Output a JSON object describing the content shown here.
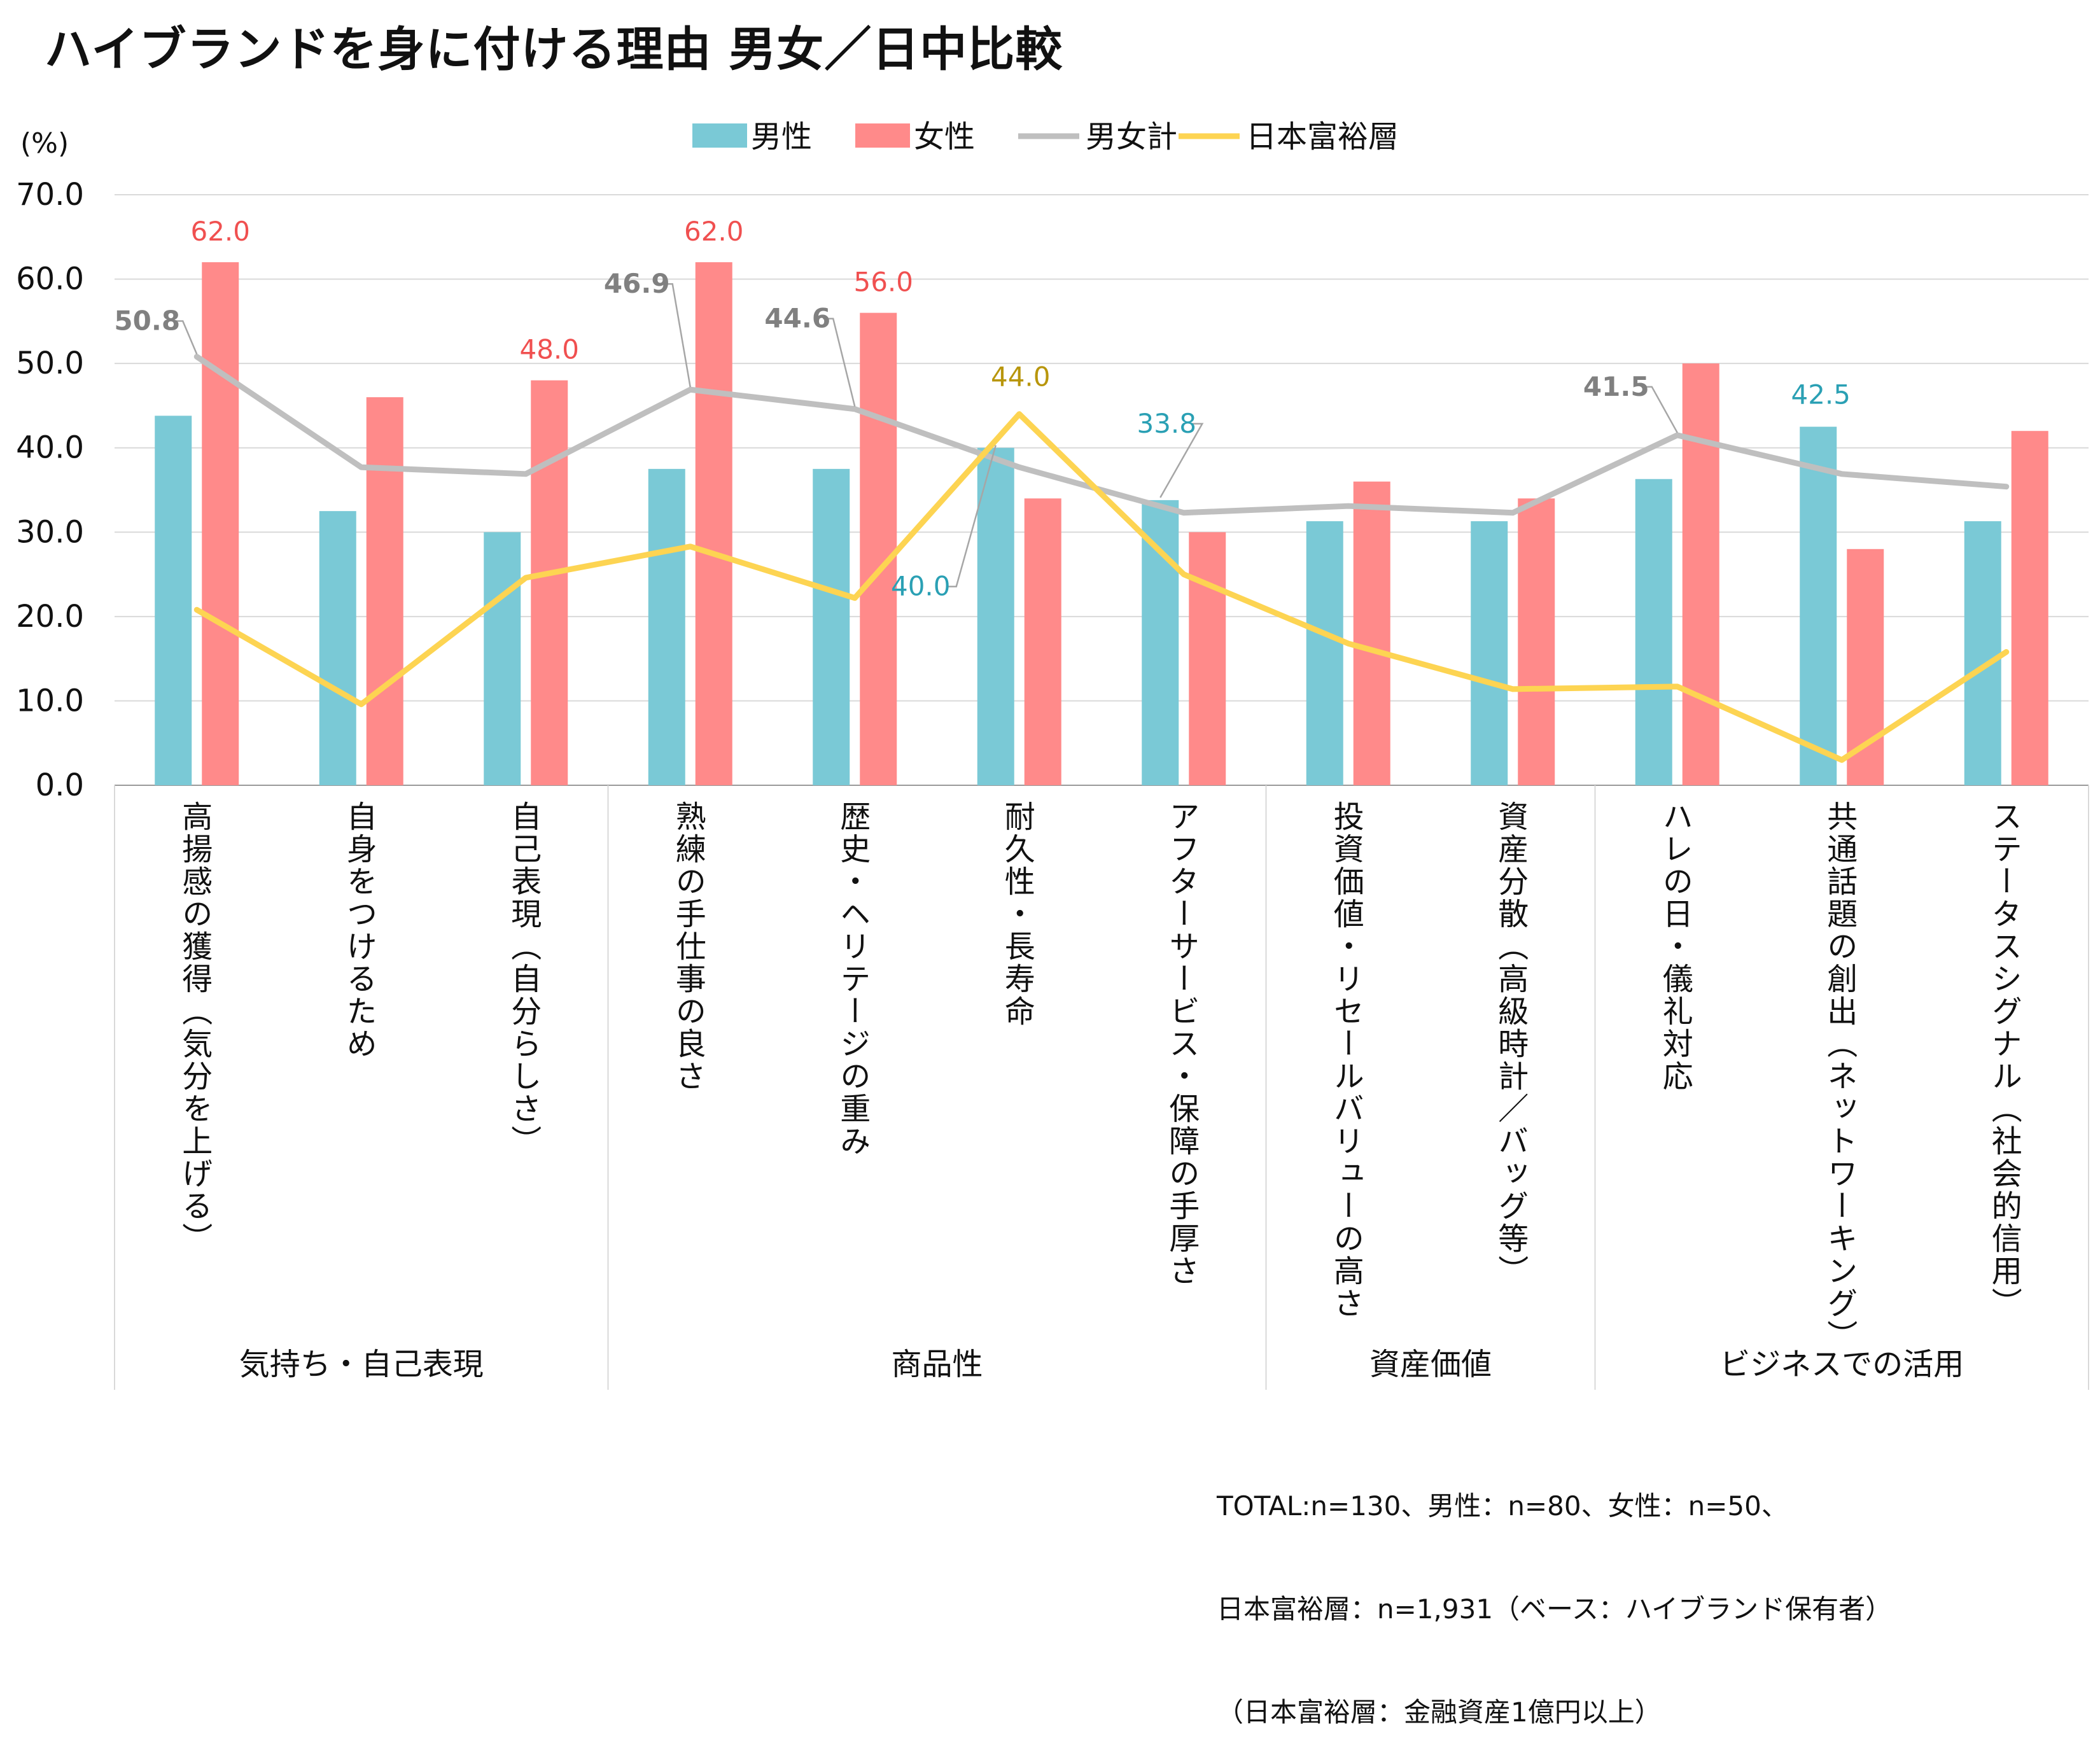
{
  "title": "ハイブランドを身に付ける理由 男女／日中比較",
  "chart_data": {
    "type": "bar",
    "title": "ハイブランドを身に付ける理由 男女／日中比較",
    "unit_label": "(%)",
    "ylim": [
      0,
      70
    ],
    "yticks": [
      "0.0",
      "10.0",
      "20.0",
      "30.0",
      "40.0",
      "50.0",
      "60.0",
      "70.0"
    ],
    "categories": [
      "高揚感の獲得（気分を上げる）",
      "自身をつけるため",
      "自己表現（自分らしさ）",
      "熟練の手仕事の良さ",
      "歴史・ヘリテージの重み",
      "耐久性・長寿命",
      "アフターサービス・保障の手厚さ",
      "投資価値・リセールバリューの高さ",
      "資産分散（高級時計／バッグ等）",
      "ハレの日・儀礼対応",
      "共通話題の創出（ネットワーキング）",
      "ステータスシグナル（社会的信用）"
    ],
    "groups": [
      {
        "label": "気持ち・自己表現",
        "from": 0,
        "to": 2
      },
      {
        "label": "商品性",
        "from": 3,
        "to": 6
      },
      {
        "label": "資産価値",
        "from": 7,
        "to": 8
      },
      {
        "label": "ビジネスでの活用",
        "from": 9,
        "to": 11
      }
    ],
    "series": [
      {
        "name": "男性",
        "kind": "bar",
        "color": "#7ac9d6",
        "values": [
          43.8,
          32.5,
          30.0,
          37.5,
          37.5,
          40.0,
          33.8,
          31.3,
          31.3,
          36.3,
          42.5,
          31.3
        ]
      },
      {
        "name": "女性",
        "kind": "bar",
        "color": "#ff8a8a",
        "values": [
          62.0,
          46.0,
          48.0,
          62.0,
          56.0,
          34.0,
          30.0,
          36.0,
          34.0,
          50.0,
          28.0,
          42.0
        ]
      },
      {
        "name": "男女計",
        "kind": "line",
        "color": "#bfbfbf",
        "values": [
          50.8,
          37.7,
          36.9,
          46.9,
          44.6,
          37.7,
          32.3,
          33.1,
          32.3,
          41.5,
          36.9,
          35.4
        ]
      },
      {
        "name": "日本富裕層",
        "kind": "line",
        "color": "#fdd452",
        "values": [
          20.8,
          9.6,
          24.6,
          28.3,
          22.2,
          44.0,
          25.0,
          16.8,
          11.4,
          11.7,
          3.0,
          15.8
        ]
      }
    ],
    "annotations": [
      {
        "text": "62.0",
        "series": "女性",
        "index": 0,
        "color": "#f05050"
      },
      {
        "text": "48.0",
        "series": "女性",
        "index": 2,
        "color": "#f05050"
      },
      {
        "text": "62.0",
        "series": "女性",
        "index": 3,
        "color": "#f05050"
      },
      {
        "text": "56.0",
        "series": "女性",
        "index": 4,
        "color": "#f05050"
      },
      {
        "text": "50.8",
        "series": "男女計",
        "index": 0,
        "color": "#808080"
      },
      {
        "text": "46.9",
        "series": "男女計",
        "index": 3,
        "color": "#808080"
      },
      {
        "text": "44.6",
        "series": "男女計",
        "index": 4,
        "color": "#808080"
      },
      {
        "text": "41.5",
        "series": "男女計",
        "index": 9,
        "color": "#808080"
      },
      {
        "text": "44.0",
        "series": "日本富裕層",
        "index": 5,
        "color": "#b8960c"
      },
      {
        "text": "40.0",
        "series": "男性",
        "index": 5,
        "color": "#2aa0b4"
      },
      {
        "text": "33.8",
        "series": "男性",
        "index": 6,
        "color": "#2aa0b4"
      },
      {
        "text": "42.5",
        "series": "男性",
        "index": 10,
        "color": "#2aa0b4"
      }
    ]
  },
  "footnote": [
    "TOTAL:n=130、男性：n=80、女性：n=50、",
    "日本富裕層：n=1,931（ベース：ハイブランド保有者）",
    "（日本富裕層：金融資産1億円以上）"
  ]
}
